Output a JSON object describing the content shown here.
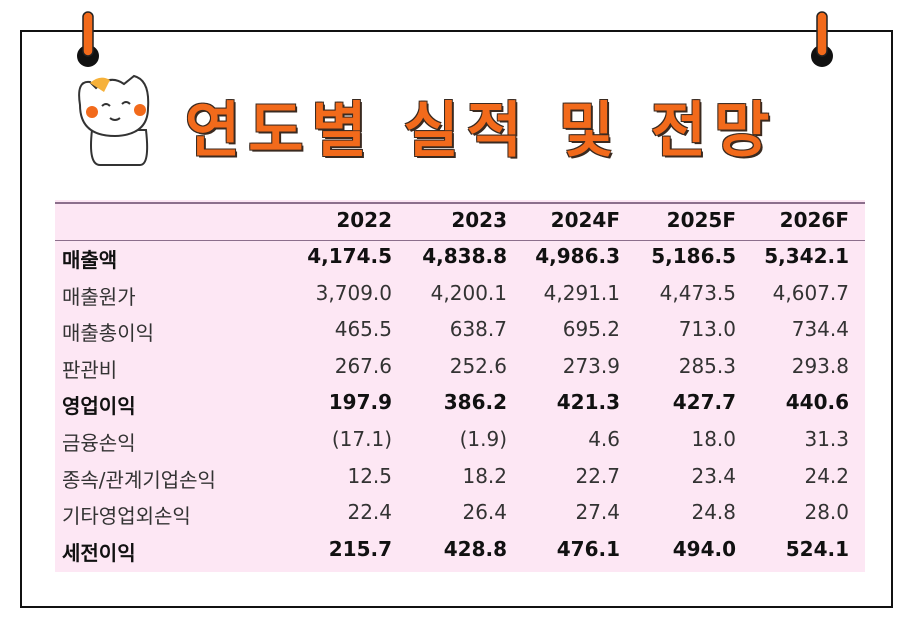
{
  "header": {
    "title": "연도별 실적 및 전망"
  },
  "table": {
    "columns": [
      "2022",
      "2023",
      "2024F",
      "2025F",
      "2026F"
    ],
    "rows": [
      {
        "label": "매출액",
        "bold": true,
        "cells": [
          "4,174.5",
          "4,838.8",
          "4,986.3",
          "5,186.5",
          "5,342.1"
        ]
      },
      {
        "label": "매출원가",
        "bold": false,
        "cells": [
          "3,709.0",
          "4,200.1",
          "4,291.1",
          "4,473.5",
          "4,607.7"
        ]
      },
      {
        "label": "매출총이익",
        "bold": false,
        "cells": [
          "465.5",
          "638.7",
          "695.2",
          "713.0",
          "734.4"
        ]
      },
      {
        "label": "판관비",
        "bold": false,
        "cells": [
          "267.6",
          "252.6",
          "273.9",
          "285.3",
          "293.8"
        ]
      },
      {
        "label": "영업이익",
        "bold": true,
        "cells": [
          "197.9",
          "386.2",
          "421.3",
          "427.7",
          "440.6"
        ]
      },
      {
        "label": "금융손익",
        "bold": false,
        "cells": [
          "(17.1)",
          "(1.9)",
          "4.6",
          "18.0",
          "31.3"
        ]
      },
      {
        "label": "종속/관계기업손익",
        "bold": false,
        "cells": [
          "12.5",
          "18.2",
          "22.7",
          "23.4",
          "24.2"
        ]
      },
      {
        "label": "기타영업외손익",
        "bold": false,
        "cells": [
          "22.4",
          "26.4",
          "27.4",
          "24.8",
          "28.0"
        ]
      },
      {
        "label": "세전이익",
        "bold": true,
        "cells": [
          "215.7",
          "428.8",
          "476.1",
          "494.0",
          "524.1"
        ]
      }
    ]
  }
}
